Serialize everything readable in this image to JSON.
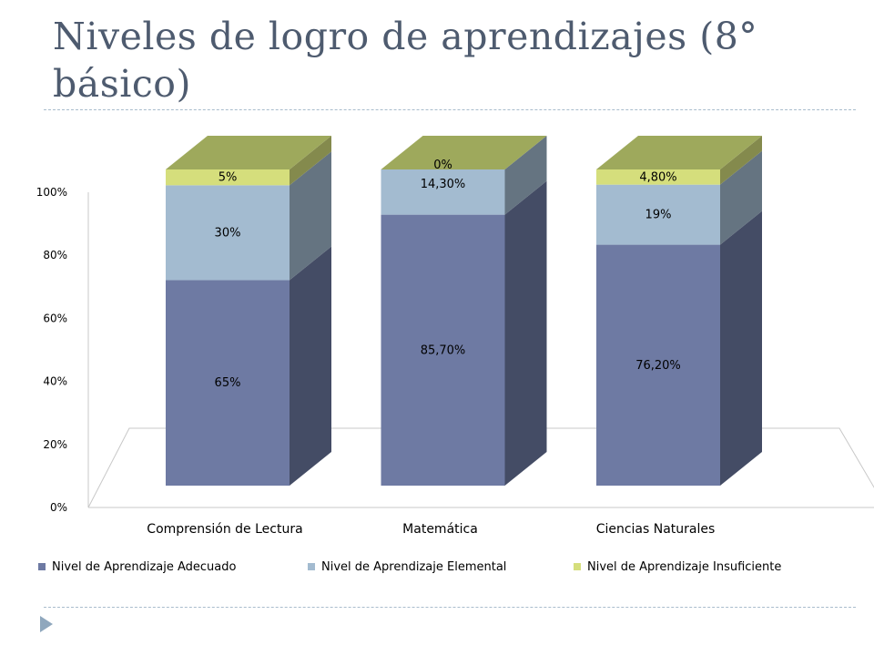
{
  "title": "Niveles de logro de aprendizajes (8° básico)",
  "icons": {
    "bullet": "triangle-bullet-icon"
  },
  "colors": {
    "adecuado": "#6e7aa3",
    "elemental": "#a3bbd0",
    "insuficiente": "#d5de7c",
    "top": "#9ea95c",
    "accent": "#4e5b6f"
  },
  "chart_data": {
    "type": "bar",
    "stacked": true,
    "three_d": true,
    "categories": [
      "Comprensión de Lectura",
      "Matemática",
      "Ciencias Naturales"
    ],
    "series": [
      {
        "name": "Nivel de Aprendizaje Adecuado",
        "values": [
          65,
          85.7,
          76.2
        ],
        "labels": [
          "65%",
          "85,70%",
          "76,20%"
        ]
      },
      {
        "name": "Nivel de Aprendizaje Elemental",
        "values": [
          30,
          14.3,
          19
        ],
        "labels": [
          "30%",
          "14,30%",
          "19%"
        ]
      },
      {
        "name": "Nivel de Aprendizaje Insuficiente",
        "values": [
          5,
          0,
          4.8
        ],
        "labels": [
          "5%",
          "0%",
          "4,80%"
        ]
      }
    ],
    "yticks": [
      "0%",
      "20%",
      "40%",
      "60%",
      "80%",
      "100%"
    ],
    "ylim": [
      0,
      100
    ],
    "legend": "bottom"
  }
}
